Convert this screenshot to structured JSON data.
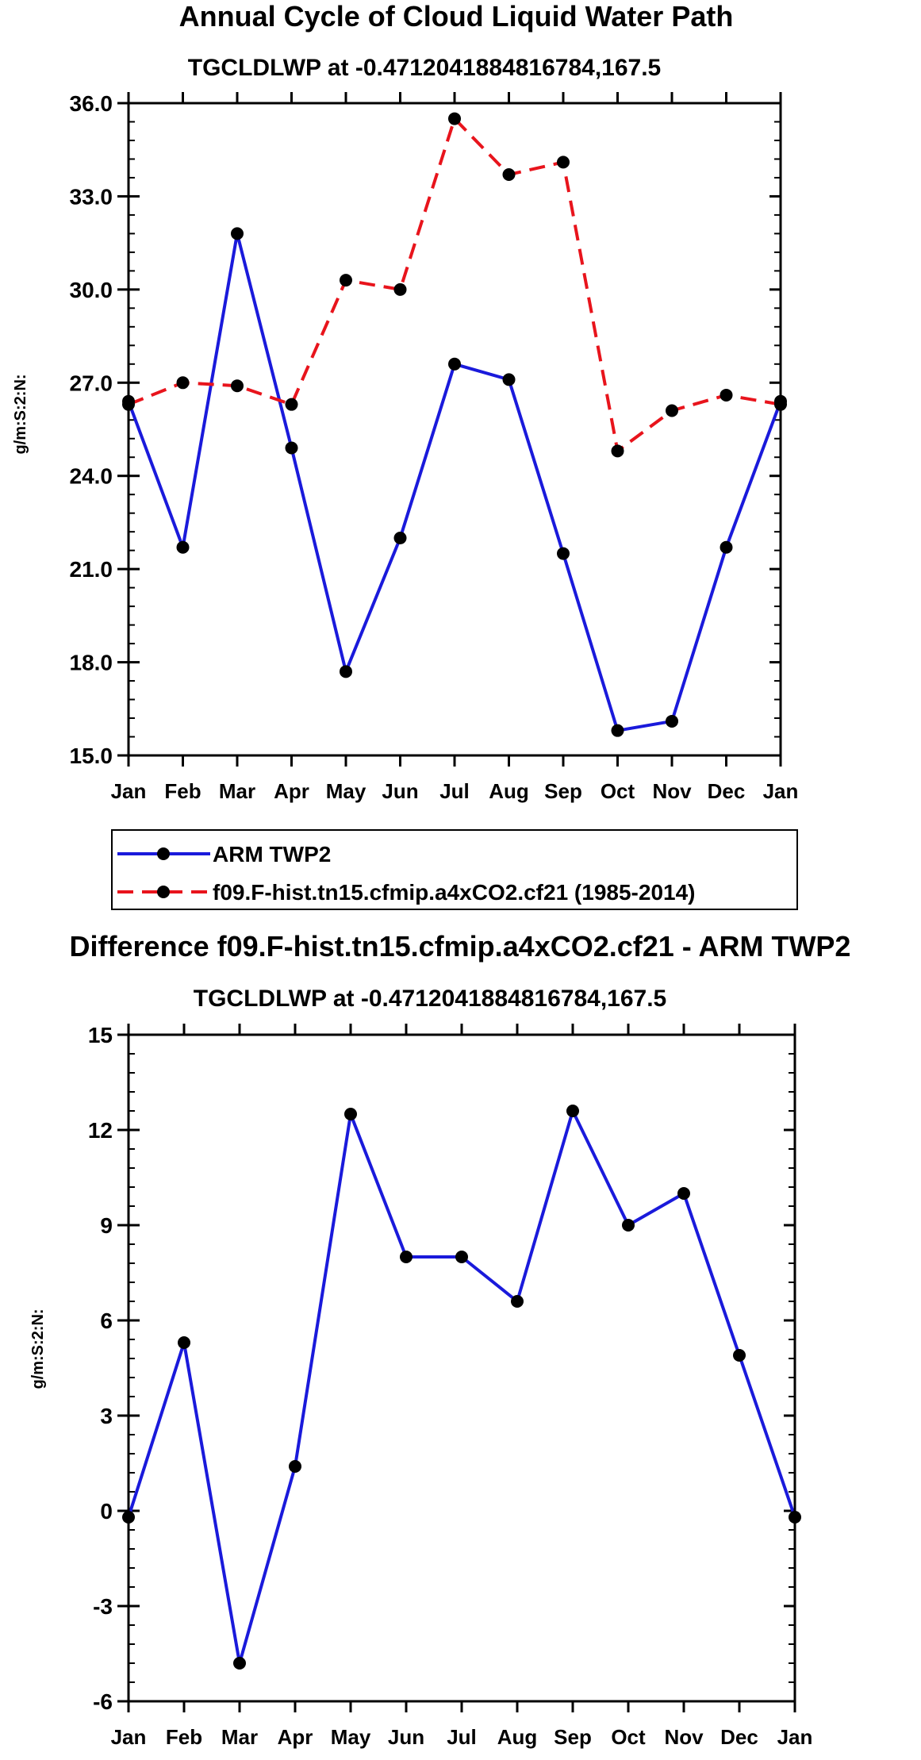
{
  "chart_data": [
    {
      "type": "line",
      "title": "Annual Cycle of Cloud Liquid Water Path",
      "subtitle": "TGCLDLWP at -0.4712041884816784,167.5",
      "ylabel": "g/m:S:2:N:",
      "xlabel": "",
      "categories": [
        "Jan",
        "Feb",
        "Mar",
        "Apr",
        "May",
        "Jun",
        "Jul",
        "Aug",
        "Sep",
        "Oct",
        "Nov",
        "Dec",
        "Jan"
      ],
      "ylim": [
        15.0,
        36.0
      ],
      "yticks": [
        "15.0",
        "18.0",
        "21.0",
        "24.0",
        "27.0",
        "30.0",
        "33.0",
        "36.0"
      ],
      "ytick_values": [
        15,
        18,
        21,
        24,
        27,
        30,
        33,
        36
      ],
      "series": [
        {
          "name": "ARM TWP2",
          "color": "#1a1adb",
          "dash": "solid",
          "values": [
            26.4,
            21.7,
            31.8,
            24.9,
            17.7,
            22.0,
            27.6,
            27.1,
            21.5,
            15.8,
            16.1,
            21.7,
            26.4
          ]
        },
        {
          "name": "f09.F-hist.tn15.cfmip.a4xCO2.cf21 (1985-2014)",
          "color": "#e8141c",
          "dash": "dashed",
          "values": [
            26.3,
            27.0,
            26.9,
            26.3,
            30.3,
            30.0,
            35.5,
            33.7,
            34.1,
            24.8,
            26.1,
            26.6,
            26.3
          ]
        }
      ],
      "legend": [
        "ARM TWP2",
        "f09.F-hist.tn15.cfmip.a4xCO2.cf21 (1985-2014)"
      ]
    },
    {
      "type": "line",
      "title": "Difference f09.F-hist.tn15.cfmip.a4xCO2.cf21 - ARM TWP2",
      "subtitle": "TGCLDLWP at -0.4712041884816784,167.5",
      "ylabel": "g/m:S:2:N:",
      "xlabel": "",
      "categories": [
        "Jan",
        "Feb",
        "Mar",
        "Apr",
        "May",
        "Jun",
        "Jul",
        "Aug",
        "Sep",
        "Oct",
        "Nov",
        "Dec",
        "Jan"
      ],
      "ylim": [
        -6,
        15
      ],
      "yticks": [
        "-6",
        "-3",
        "0",
        "3",
        "6",
        "9",
        "12",
        "15"
      ],
      "ytick_values": [
        -6,
        -3,
        0,
        3,
        6,
        9,
        12,
        15
      ],
      "series": [
        {
          "name": "Difference",
          "color": "#1a1adb",
          "dash": "solid",
          "values": [
            -0.2,
            5.3,
            -4.8,
            1.4,
            12.5,
            8.0,
            8.0,
            6.6,
            12.6,
            9.0,
            10.0,
            4.9,
            -0.2
          ]
        }
      ]
    }
  ]
}
